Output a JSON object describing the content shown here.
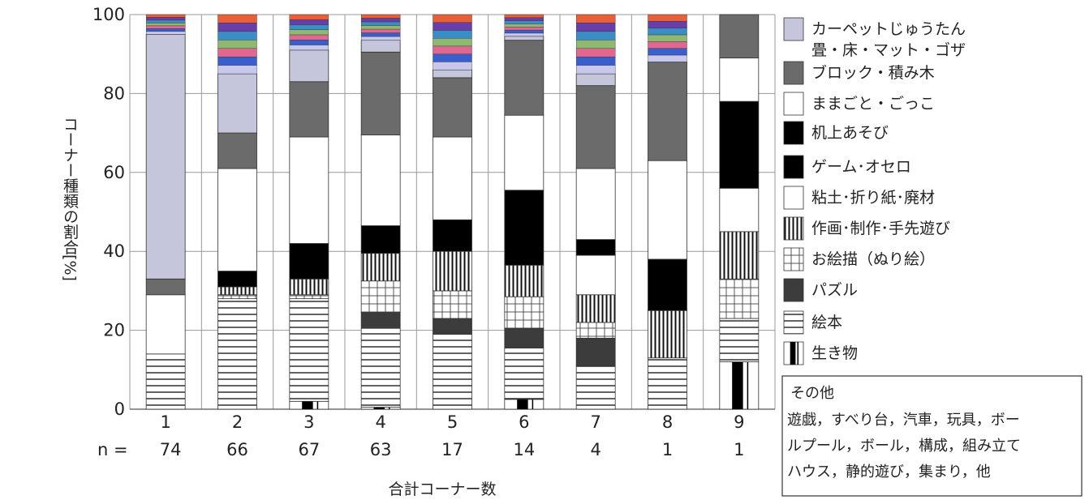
{
  "chart_data": {
    "type": "bar",
    "stacked": true,
    "categories": [
      "1",
      "2",
      "3",
      "4",
      "5",
      "6",
      "7",
      "8",
      "9"
    ],
    "n_label": "n =",
    "n_values": [
      "74",
      "66",
      "67",
      "63",
      "17",
      "14",
      "4",
      "1",
      "1"
    ],
    "xlabel": "合計コーナー数",
    "ylabel": "コーナー種類の割合[%]",
    "ylim": [
      0,
      100
    ],
    "yticks": [
      "0",
      "20",
      "40",
      "60",
      "80",
      "100"
    ],
    "grid": true,
    "legend_position": "right",
    "series": [
      {
        "name": "生き物",
        "pattern": "creature",
        "values": [
          0,
          0,
          2,
          0.5,
          0,
          2.5,
          0,
          0,
          12
        ]
      },
      {
        "name": "絵本",
        "pattern": "hlines",
        "values": [
          14,
          28,
          26,
          20,
          19,
          13,
          11,
          13,
          11
        ]
      },
      {
        "name": "パズル",
        "pattern": "darkgray",
        "values": [
          0,
          0,
          0,
          4,
          4,
          5,
          7,
          0,
          0
        ]
      },
      {
        "name": "お絵描（ぬり絵）",
        "pattern": "grid",
        "values": [
          0,
          1,
          1,
          8,
          7,
          8,
          4,
          0,
          10
        ]
      },
      {
        "name": "作画・制作・手先遊び",
        "pattern": "vlines",
        "values": [
          0,
          2,
          4,
          7,
          10,
          8,
          7,
          12,
          12
        ]
      },
      {
        "name": "粘土・折り紙・廃材",
        "pattern": "white",
        "values": [
          0,
          0,
          0,
          0,
          0,
          0,
          10,
          0,
          11
        ]
      },
      {
        "name": "ゲーム・オセロ",
        "pattern": "black",
        "values": [
          0,
          0,
          0,
          0,
          0,
          0,
          0,
          0,
          0
        ]
      },
      {
        "name": "机上あそび",
        "pattern": "black",
        "values": [
          0,
          4,
          9,
          7,
          8,
          19,
          4,
          13,
          22
        ]
      },
      {
        "name": "ままごと・ごっこ",
        "pattern": "white",
        "values": [
          15,
          26,
          27,
          23,
          21,
          19,
          18,
          25,
          11
        ]
      },
      {
        "name": "ブロック・積み木",
        "pattern": "gray",
        "values": [
          4,
          9,
          14,
          21,
          15,
          19,
          21,
          25,
          11
        ]
      },
      {
        "name": "カーペットじゅうたん\n畳・床・マット・ゴザ",
        "pattern": "lavender",
        "values": [
          62,
          15,
          8,
          3,
          2,
          1,
          3,
          0,
          0
        ]
      },
      {
        "name": "その他",
        "pattern": "other",
        "values": [
          5,
          15,
          9,
          6.5,
          14,
          5.5,
          15,
          12,
          0
        ]
      }
    ],
    "other_colors": [
      "#e8603a",
      "#6a3ea8",
      "#3a8ec8",
      "#8fb870",
      "#e06890",
      "#3a5fcd",
      "#c8c8ec"
    ],
    "legend": [
      {
        "label": "カーペットじゅうたん\n畳・床・マット・ゴザ",
        "pattern": "lavender"
      },
      {
        "label": "ブロック・積み木",
        "pattern": "gray"
      },
      {
        "label": "ままごと・ごっこ",
        "pattern": "white"
      },
      {
        "label": "机上あそび",
        "pattern": "black"
      },
      {
        "label": "ゲーム･オセロ",
        "pattern": "black"
      },
      {
        "label": "粘土･折り紙･廃材",
        "pattern": "white"
      },
      {
        "label": "作画･制作･手先遊び",
        "pattern": "vlines"
      },
      {
        "label": "お絵描（ぬり絵）",
        "pattern": "grid"
      },
      {
        "label": "パズル",
        "pattern": "darkgray"
      },
      {
        "label": "絵本",
        "pattern": "hlines"
      },
      {
        "label": "生き物",
        "pattern": "creature"
      }
    ],
    "other_note": {
      "title": "その他",
      "lines": [
        "遊戯，すべり台，汽車，玩具，ボー",
        "ルプール，ボール，構成，組み立て",
        "ハウス，静的遊び，集まり，他"
      ]
    }
  }
}
